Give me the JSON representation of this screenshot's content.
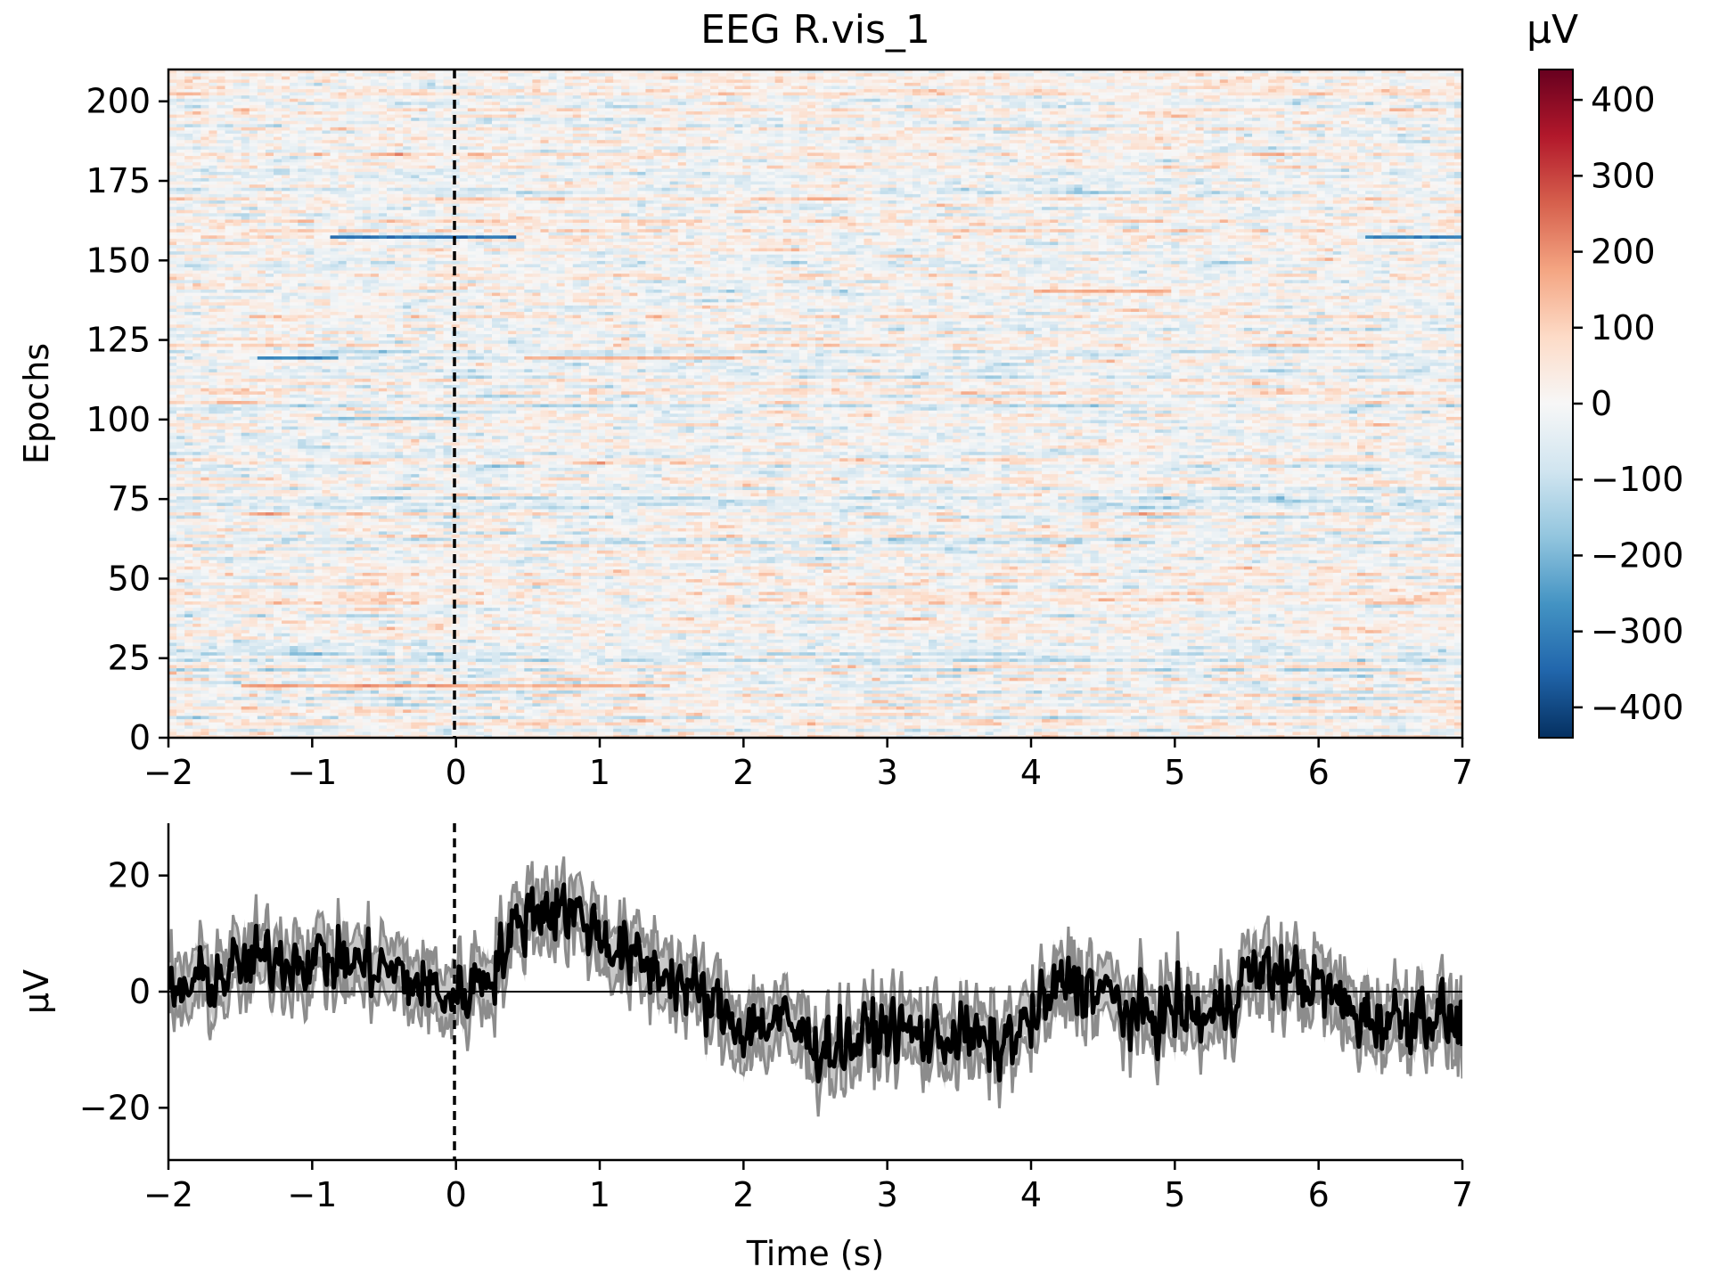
{
  "chart_data": [
    {
      "type": "heatmap",
      "title": "EEG R.vis_1",
      "xlabel": "",
      "ylabel": "Epochs",
      "xlim": [
        -2,
        7
      ],
      "ylim": [
        0,
        210
      ],
      "x_ticks": [
        -2,
        -1,
        0,
        1,
        2,
        3,
        4,
        5,
        6,
        7
      ],
      "x_tick_labels": [
        "−2",
        "−1",
        "0",
        "1",
        "2",
        "3",
        "4",
        "5",
        "6",
        "7"
      ],
      "y_ticks": [
        0,
        25,
        50,
        75,
        100,
        125,
        150,
        175,
        200
      ],
      "y_tick_labels": [
        "0",
        "25",
        "50",
        "75",
        "100",
        "125",
        "150",
        "175",
        "200"
      ],
      "n_epochs": 210,
      "time_range": [
        -2,
        7
      ],
      "colormap": "RdBu_r",
      "vmin": -440,
      "vmax": 440,
      "event_marker_time": 0,
      "colorbar": {
        "label": "µV",
        "ticks": [
          -400,
          -300,
          -200,
          -100,
          0,
          100,
          200,
          300,
          400
        ],
        "tick_labels": [
          "−400",
          "−300",
          "−200",
          "−100",
          "0",
          "100",
          "200",
          "300",
          "400"
        ]
      },
      "highlighted_epochs": [
        {
          "epoch": 157,
          "t_start": -0.85,
          "t_end": 0.4,
          "value": -330
        },
        {
          "epoch": 157,
          "t_start": 6.3,
          "t_end": 7.0,
          "value": -300
        },
        {
          "epoch": 119,
          "t_start": -1.4,
          "t_end": -0.8,
          "value": -280
        },
        {
          "epoch": 119,
          "t_start": 0.5,
          "t_end": 2.0,
          "value": 150
        },
        {
          "epoch": 16,
          "t_start": -1.5,
          "t_end": 0.0,
          "value": 180
        },
        {
          "epoch": 16,
          "t_start": 0.0,
          "t_end": 1.5,
          "value": 150
        },
        {
          "epoch": 140,
          "t_start": 4.0,
          "t_end": 5.0,
          "value": 160
        },
        {
          "epoch": 100,
          "t_start": -1.0,
          "t_end": 0.0,
          "value": -160
        }
      ]
    },
    {
      "type": "line",
      "xlabel": "Time (s)",
      "ylabel": "µV",
      "xlim": [
        -2,
        7
      ],
      "ylim": [
        -29,
        29
      ],
      "x_ticks": [
        -2,
        -1,
        0,
        1,
        2,
        3,
        4,
        5,
        6,
        7
      ],
      "x_tick_labels": [
        "−2",
        "−1",
        "0",
        "1",
        "2",
        "3",
        "4",
        "5",
        "6",
        "7"
      ],
      "y_ticks": [
        -20,
        0,
        20
      ],
      "y_tick_labels": [
        "−20",
        "0",
        "20"
      ],
      "event_marker_time": 0,
      "zero_line": true,
      "series_color": "#000000",
      "ci_color": "#8c8c8c",
      "ci_halfwidth": 4.5,
      "x": [
        -2.0,
        -1.75,
        -1.5,
        -1.25,
        -1.0,
        -0.75,
        -0.5,
        -0.25,
        0.0,
        0.25,
        0.5,
        0.75,
        1.0,
        1.25,
        1.5,
        1.75,
        2.0,
        2.25,
        2.5,
        2.75,
        3.0,
        3.25,
        3.5,
        3.75,
        4.0,
        4.25,
        4.5,
        4.75,
        5.0,
        5.25,
        5.5,
        5.75,
        6.0,
        6.25,
        6.5,
        6.75,
        7.0
      ],
      "mean": [
        -1,
        2,
        4,
        6,
        6,
        5,
        4,
        1,
        -1,
        4,
        14,
        15,
        10,
        5,
        3,
        -2,
        -6,
        -5,
        -9,
        -9,
        -6,
        -8,
        -7,
        -10,
        -5,
        2,
        0,
        -5,
        -3,
        -5,
        3,
        3,
        1,
        -4,
        -5,
        -3,
        -6
      ]
    }
  ]
}
